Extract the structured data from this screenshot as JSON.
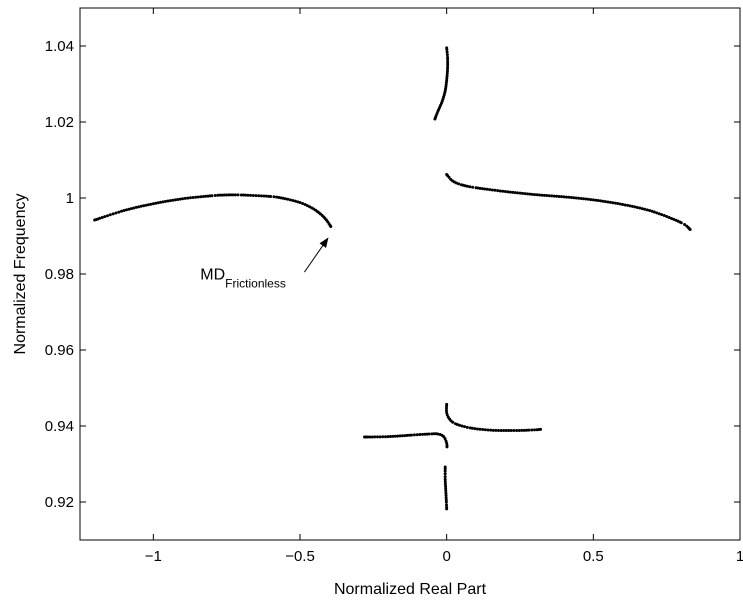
{
  "chart_data": {
    "type": "scatter",
    "title": "",
    "xlabel": "Normalized Real Part",
    "ylabel": "Normalized Frequency",
    "xlim": [
      -1.25,
      1.0
    ],
    "ylim": [
      0.91,
      1.05
    ],
    "grid": false,
    "xticks": [
      -1,
      -0.5,
      0,
      0.5,
      1
    ],
    "xtick_labels": [
      "−1",
      "−0.5",
      "0",
      "0.5",
      "1"
    ],
    "yticks": [
      0.92,
      0.94,
      0.96,
      0.98,
      1.0,
      1.02,
      1.04
    ],
    "ytick_labels": [
      "0.92",
      "0.94",
      "0.96",
      "0.98",
      "1",
      "1.02",
      "1.04"
    ],
    "series": [
      {
        "points": [
          [
            -1.2,
            0.9942
          ],
          [
            -1.1,
            0.9967
          ],
          [
            -1.0,
            0.9985
          ],
          [
            -0.9,
            0.9998
          ],
          [
            -0.8,
            1.0006
          ],
          [
            -0.75,
            1.0008
          ],
          [
            -0.7,
            1.0008
          ],
          [
            -0.6,
            1.0004
          ],
          [
            -0.55,
            0.9998
          ],
          [
            -0.5,
            0.9988
          ],
          [
            -0.46,
            0.9974
          ],
          [
            -0.43,
            0.9958
          ],
          [
            -0.41,
            0.9942
          ],
          [
            -0.395,
            0.9925
          ]
        ]
      },
      {
        "points": [
          [
            0.0,
            1.0062
          ],
          [
            0.02,
            1.0045
          ],
          [
            0.05,
            1.0035
          ],
          [
            0.1,
            1.0027
          ],
          [
            0.2,
            1.0017
          ],
          [
            0.3,
            1.0009
          ],
          [
            0.4,
            1.0003
          ],
          [
            0.5,
            0.9995
          ],
          [
            0.6,
            0.9983
          ],
          [
            0.7,
            0.9965
          ],
          [
            0.8,
            0.9935
          ],
          [
            0.83,
            0.9917
          ]
        ]
      },
      {
        "points": [
          [
            -0.04,
            1.0208
          ],
          [
            -0.03,
            1.0228
          ],
          [
            -0.015,
            1.0255
          ],
          [
            -0.005,
            1.0282
          ],
          [
            0.0,
            1.031
          ],
          [
            0.003,
            1.034
          ],
          [
            0.003,
            1.037
          ],
          [
            0.0,
            1.0395
          ]
        ]
      },
      {
        "points": [
          [
            -0.28,
            0.9371
          ],
          [
            -0.2,
            0.9372
          ],
          [
            -0.12,
            0.9376
          ],
          [
            -0.06,
            0.9379
          ],
          [
            -0.03,
            0.9379
          ],
          [
            -0.01,
            0.9372
          ],
          [
            0.0,
            0.9355
          ],
          [
            0.001,
            0.9345
          ]
        ]
      },
      {
        "points": [
          [
            0.0,
            0.9457
          ],
          [
            0.0,
            0.9435
          ],
          [
            0.01,
            0.9418
          ],
          [
            0.03,
            0.9406
          ],
          [
            0.08,
            0.9395
          ],
          [
            0.15,
            0.9389
          ],
          [
            0.22,
            0.9388
          ],
          [
            0.28,
            0.9389
          ],
          [
            0.32,
            0.9391
          ]
        ]
      },
      {
        "points": [
          [
            -0.005,
            0.9292
          ],
          [
            -0.005,
            0.926
          ],
          [
            -0.003,
            0.923
          ],
          [
            -0.001,
            0.92
          ],
          [
            0.0,
            0.9182
          ]
        ]
      }
    ],
    "annotations": [
      {
        "text_main": "MD",
        "text_sub": "Frictionless",
        "text_at": [
          -0.84,
          0.9785
        ],
        "arrow_from": [
          -0.485,
          0.9805
        ],
        "arrow_to": [
          -0.405,
          0.9894
        ]
      }
    ]
  }
}
